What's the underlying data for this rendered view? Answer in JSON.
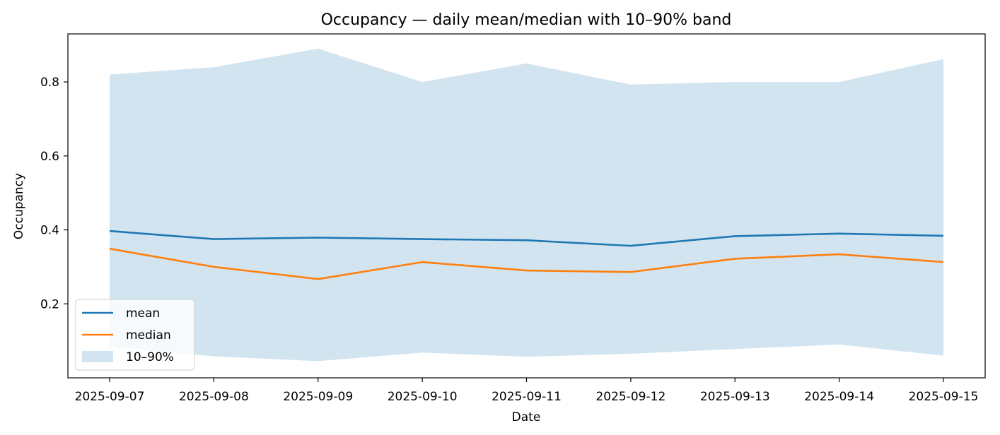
{
  "chart_data": {
    "type": "line",
    "title": "Occupancy — daily mean/median with 10–90% band",
    "xlabel": "Date",
    "ylabel": "Occupancy",
    "x": [
      "2025-09-07",
      "2025-09-08",
      "2025-09-09",
      "2025-09-10",
      "2025-09-11",
      "2025-09-12",
      "2025-09-13",
      "2025-09-14",
      "2025-09-15"
    ],
    "ylim": [
      0.0,
      0.93
    ],
    "yticks": [
      "0.2",
      "0.4",
      "0.6",
      "0.8"
    ],
    "series": [
      {
        "name": "mean",
        "color": "#1f77b4",
        "values": [
          0.397,
          0.375,
          0.379,
          0.375,
          0.372,
          0.357,
          0.383,
          0.39,
          0.384
        ]
      },
      {
        "name": "median",
        "color": "#ff7f0e",
        "values": [
          0.349,
          0.3,
          0.267,
          0.313,
          0.29,
          0.286,
          0.322,
          0.334,
          0.313
        ]
      }
    ],
    "band": {
      "name": "10–90%",
      "color": "#1f77b4",
      "opacity": 0.2,
      "lower": [
        0.085,
        0.058,
        0.045,
        0.068,
        0.057,
        0.065,
        0.078,
        0.09,
        0.06
      ],
      "upper": [
        0.82,
        0.84,
        0.89,
        0.8,
        0.85,
        0.793,
        0.8,
        0.8,
        0.862
      ]
    },
    "grid": false,
    "legend": "lower-left"
  }
}
